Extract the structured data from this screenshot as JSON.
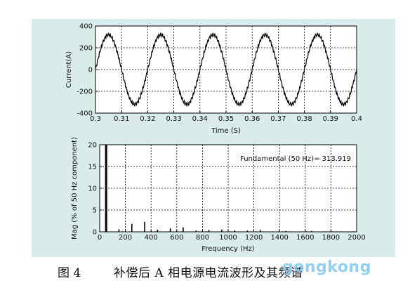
{
  "chart_data": [
    {
      "type": "line",
      "xlabel": "Time (S)",
      "ylabel": "Current(A)",
      "xlim": [
        0.3,
        0.4
      ],
      "ylim": [
        -400,
        400
      ],
      "xticks": [
        "0.3",
        "0.31",
        "0.32",
        "0.33",
        "0.34",
        "0.35",
        "0.36",
        "0.37",
        "0.38",
        "0.39",
        "0.4"
      ],
      "yticks": [
        "400",
        "200",
        "0",
        "-200",
        "-400"
      ],
      "grid": true,
      "series": [
        {
          "amplitude": 320,
          "frequency_hz": 50,
          "x": [
            0.3,
            0.3025,
            0.305,
            0.3075,
            0.31,
            0.3125,
            0.315,
            0.3175,
            0.32,
            0.3225,
            0.325,
            0.3275,
            0.33,
            0.3325,
            0.335,
            0.3375,
            0.34,
            0.3425,
            0.345,
            0.3475,
            0.35,
            0.3525,
            0.355,
            0.3575,
            0.36,
            0.3625,
            0.365,
            0.3675,
            0.37,
            0.3725,
            0.375,
            0.3775,
            0.38,
            0.3825,
            0.385,
            0.3875,
            0.39,
            0.3925,
            0.395,
            0.3975,
            0.4
          ],
          "y": [
            0,
            225,
            320,
            225,
            0,
            -225,
            -320,
            -225,
            0,
            225,
            320,
            225,
            0,
            -225,
            -320,
            -225,
            0,
            225,
            320,
            225,
            0,
            -225,
            -320,
            -225,
            0,
            225,
            320,
            225,
            0,
            -225,
            -320,
            -225,
            0,
            225,
            320,
            225,
            0,
            -225,
            -320,
            -225,
            0
          ]
        }
      ]
    },
    {
      "type": "bar",
      "xlabel": "Frequency (Hz)",
      "ylabel": "Mag (% of 50 Hz component)",
      "xlim": [
        0,
        2000
      ],
      "ylim": [
        0,
        20
      ],
      "xticks": [
        "0",
        "200",
        "400",
        "600",
        "800",
        "1000",
        "1200",
        "1400",
        "1600",
        "1800",
        "2000"
      ],
      "yticks": [
        "20",
        "15",
        "10",
        "5",
        "0"
      ],
      "grid": true,
      "annotation": "Fundamental (50 Hz)= 313.919",
      "harmonics": [
        {
          "freq": 50,
          "mag": 20
        },
        {
          "freq": 150,
          "mag": 0.6
        },
        {
          "freq": 250,
          "mag": 1.8
        },
        {
          "freq": 350,
          "mag": 2.3
        },
        {
          "freq": 450,
          "mag": 0.5
        },
        {
          "freq": 550,
          "mag": 0.8
        },
        {
          "freq": 650,
          "mag": 1.0
        },
        {
          "freq": 750,
          "mag": 0.3
        },
        {
          "freq": 850,
          "mag": 0.4
        },
        {
          "freq": 950,
          "mag": 0.5
        },
        {
          "freq": 1050,
          "mag": 0.3
        },
        {
          "freq": 1150,
          "mag": 0.3
        },
        {
          "freq": 1250,
          "mag": 0.4
        },
        {
          "freq": 1450,
          "mag": 0.2
        },
        {
          "freq": 1650,
          "mag": 0.2
        }
      ]
    }
  ],
  "caption": {
    "number": "图 4",
    "text": "补偿后 A 相电源电流波形及其频谱"
  },
  "watermark": "gongkong",
  "colors": {
    "panel_bg": "#d9ebea",
    "plot_bg": "#ffffff",
    "line": "#000000",
    "watermark": "#7ec8ec"
  }
}
